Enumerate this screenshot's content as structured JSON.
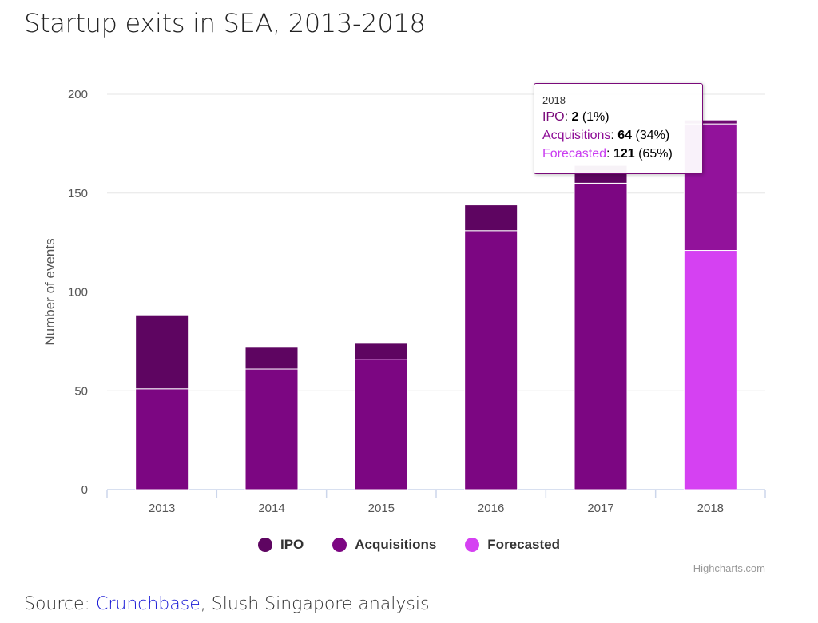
{
  "title": "Startup exits in SEA, 2013-2018",
  "source": {
    "prefix": "Source: ",
    "link_text": "Crunchbase",
    "suffix": ", Slush Singapore analysis"
  },
  "credits": "Highcharts.com",
  "colors": {
    "ipo": "#5e0561",
    "acquisitions": "#7c0682",
    "forecasted": "#d541f2",
    "acquisitions_2018": "#92129b",
    "ipo_2018": "#6e0a72",
    "grid": "#e6e6e6",
    "axis": "#ccd6eb"
  },
  "tooltip": {
    "header": "2018",
    "rows": [
      {
        "name": "IPO",
        "value": "2",
        "pct": "(1%)",
        "color": "#7a0a7a"
      },
      {
        "name": "Acquisitions",
        "value": "64",
        "pct": "(34%)",
        "color": "#8e0c96"
      },
      {
        "name": "Forecasted",
        "value": "121",
        "pct": "(65%)",
        "color": "#c93cf0"
      }
    ]
  },
  "chart_data": {
    "type": "bar",
    "stacked": true,
    "categories": [
      "2013",
      "2014",
      "2015",
      "2016",
      "2017",
      "2018"
    ],
    "series": [
      {
        "name": "Forecasted",
        "values": [
          0,
          0,
          0,
          0,
          0,
          121
        ]
      },
      {
        "name": "Acquisitions",
        "values": [
          51,
          61,
          66,
          131,
          155,
          64
        ]
      },
      {
        "name": "IPO",
        "values": [
          37,
          11,
          8,
          13,
          9,
          2
        ]
      }
    ],
    "ylabel": "Number of events",
    "xlabel": "",
    "ylim": [
      0,
      200
    ],
    "yticks": [
      0,
      50,
      100,
      150,
      200
    ],
    "grid": true,
    "legend": "bottom-center",
    "legend_order": [
      "IPO",
      "Acquisitions",
      "Forecasted"
    ]
  }
}
